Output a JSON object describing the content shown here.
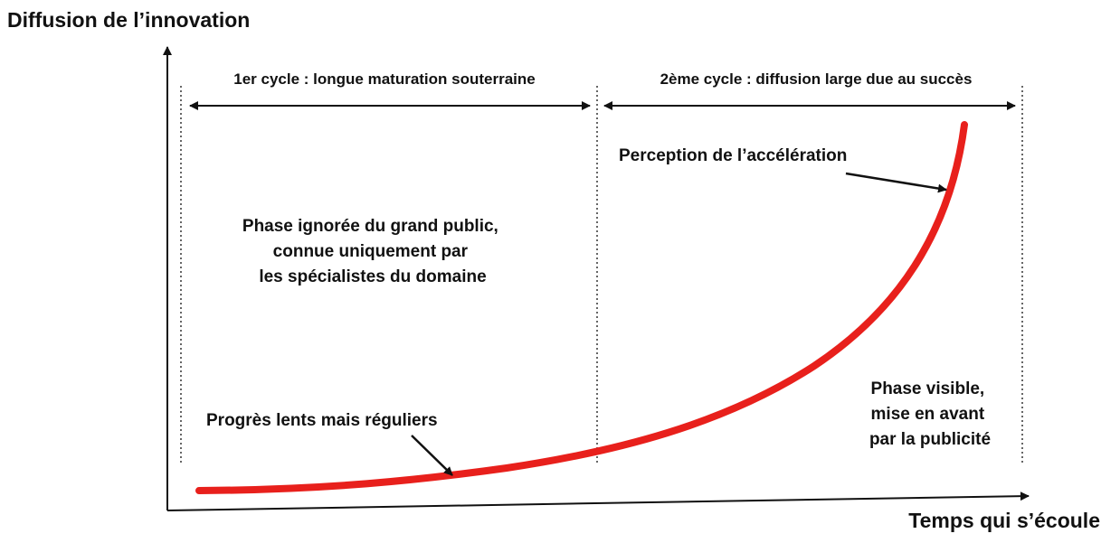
{
  "axes": {
    "y_label": "Diffusion de l’innovation",
    "x_label": "Temps qui s’écoule"
  },
  "cycles": [
    {
      "label": "1er cycle : longue maturation souterraine"
    },
    {
      "label": "2ème cycle : diffusion large due au succès"
    }
  ],
  "annotations": {
    "hidden_phase": [
      "Phase ignorée du grand public,",
      "connue uniquement par",
      "les spécialistes du domaine"
    ],
    "slow_progress": "Progrès lents mais réguliers",
    "acceleration": "Perception de l’accélération",
    "visible_phase": [
      "Phase visible,",
      "mise en avant",
      "par la publicité"
    ]
  }
}
